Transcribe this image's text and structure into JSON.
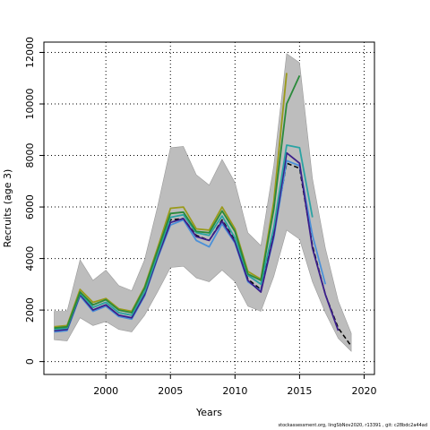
{
  "chart_data": {
    "type": "line",
    "xlabel": "Years",
    "ylabel": "Recruits (age 3)",
    "xlim": [
      1995.2,
      2020.8
    ],
    "ylim": [
      -500,
      12400
    ],
    "x_ticks": [
      2000,
      2005,
      2010,
      2015,
      2020
    ],
    "y_ticks": [
      0,
      2000,
      4000,
      6000,
      8000,
      10000,
      12000
    ],
    "grid": true,
    "band": {
      "x": [
        1996,
        1997,
        1998,
        1999,
        2000,
        2001,
        2002,
        2003,
        2004,
        2005,
        2006,
        2007,
        2008,
        2009,
        2010,
        2011,
        2012,
        2013,
        2014,
        2015,
        2016,
        2017,
        2018,
        2019
      ],
      "upper": [
        1950,
        1950,
        3950,
        3150,
        3550,
        2950,
        2750,
        3950,
        6000,
        8300,
        8350,
        7250,
        6850,
        7850,
        6950,
        5000,
        4500,
        7600,
        11950,
        11600,
        7100,
        4400,
        2350,
        1100
      ],
      "lower": [
        850,
        800,
        1700,
        1400,
        1550,
        1250,
        1150,
        1800,
        2700,
        3650,
        3700,
        3250,
        3100,
        3550,
        3100,
        2150,
        1950,
        3300,
        5100,
        4750,
        3100,
        1900,
        900,
        400
      ]
    },
    "series": [
      {
        "color": "#000000",
        "dash": true,
        "x": [
          1996,
          1997,
          1998,
          1999,
          2000,
          2001,
          2002,
          2003,
          2004,
          2005,
          2006,
          2007,
          2008,
          2009,
          2010,
          2011,
          2012,
          2013,
          2014,
          2015,
          2016,
          2017,
          2018,
          2019
        ],
        "values": [
          1300,
          1300,
          2700,
          2100,
          2300,
          1900,
          1800,
          2700,
          4100,
          5500,
          5550,
          4900,
          4700,
          5500,
          4700,
          3200,
          2800,
          4950,
          7700,
          7500,
          4500,
          2600,
          1300,
          600
        ]
      },
      {
        "color": "#4a90d9",
        "x": [
          1996,
          1997,
          1998,
          1999,
          2000,
          2001,
          2002,
          2003,
          2004,
          2005,
          2006,
          2007,
          2008,
          2009,
          2010,
          2011,
          2012,
          2013,
          2014,
          2015,
          2016,
          2017
        ],
        "values": [
          1150,
          1200,
          2550,
          1950,
          2150,
          1750,
          1650,
          2550,
          4000,
          5300,
          5500,
          4700,
          4450,
          5350,
          4600,
          3100,
          2750,
          4800,
          7800,
          7600,
          4900,
          3000
        ]
      },
      {
        "color": "#3b1e8a",
        "x": [
          1996,
          1997,
          1998,
          1999,
          2000,
          2001,
          2002,
          2003,
          2004,
          2005,
          2006,
          2007,
          2008,
          2009,
          2010,
          2011,
          2012,
          2013,
          2014,
          2015,
          2016,
          2017,
          2018
        ],
        "values": [
          1200,
          1250,
          2600,
          2000,
          2200,
          1800,
          1700,
          2600,
          4050,
          5400,
          5550,
          4850,
          4700,
          5450,
          4650,
          3150,
          2700,
          4900,
          8100,
          7700,
          4400,
          2600,
          1200
        ]
      },
      {
        "color": "#2aa3a3",
        "x": [
          1996,
          1997,
          1998,
          1999,
          2000,
          2001,
          2002,
          2003,
          2004,
          2005,
          2006,
          2007,
          2008,
          2009,
          2010,
          2011,
          2012,
          2013,
          2014,
          2015,
          2016
        ],
        "values": [
          1250,
          1300,
          2650,
          2100,
          2300,
          1900,
          1800,
          2700,
          4150,
          5600,
          5700,
          5000,
          4900,
          5650,
          4800,
          3350,
          3000,
          5200,
          8400,
          8300,
          5600
        ]
      },
      {
        "color": "#9a9a1a",
        "x": [
          1996,
          1997,
          1998,
          1999,
          2000,
          2001,
          2002,
          2003,
          2004,
          2005,
          2006,
          2007,
          2008,
          2009,
          2010,
          2011,
          2012,
          2013,
          2014
        ],
        "values": [
          1350,
          1400,
          2800,
          2300,
          2450,
          2050,
          1950,
          2900,
          4400,
          5950,
          6000,
          5150,
          5100,
          6000,
          5150,
          3500,
          3200,
          6200,
          11200
        ]
      },
      {
        "color": "#2a8a3a",
        "x": [
          1996,
          1997,
          1998,
          1999,
          2000,
          2001,
          2002,
          2003,
          2004,
          2005,
          2006,
          2007,
          2008,
          2009,
          2010,
          2011,
          2012,
          2013,
          2014,
          2015
        ],
        "values": [
          1300,
          1350,
          2700,
          2200,
          2400,
          2000,
          1900,
          2850,
          4300,
          5750,
          5800,
          5050,
          5000,
          5850,
          5050,
          3400,
          3150,
          5900,
          10000,
          11100
        ]
      }
    ]
  },
  "footer": "stockassessment.org, lingSbNov2020, r13391 , git: c28bdc2a44ad"
}
